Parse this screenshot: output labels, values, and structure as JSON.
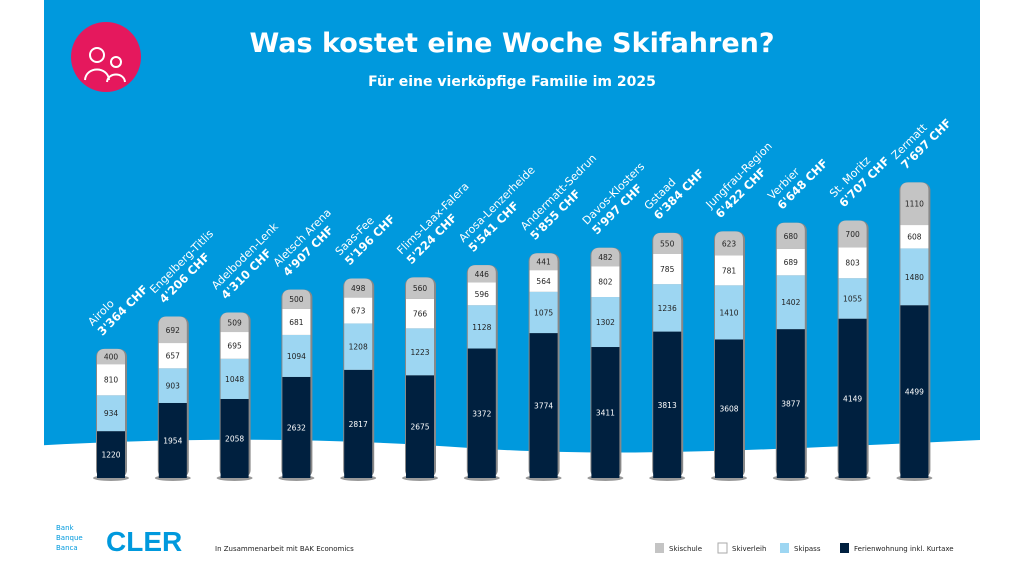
{
  "header": {
    "title": "Was kostet eine Woche Skifahren?",
    "subtitle": "Für eine vierköpfige Familie im 2025",
    "icon": "family-icon"
  },
  "footer": {
    "bank_lines": [
      "Bank",
      "Banque",
      "Banca"
    ],
    "brand": "CLER",
    "partner": "In Zusammenarbeit mit BAK Economics"
  },
  "colors": {
    "background": "#0099DD",
    "accent": "#E5185D",
    "Skischule": "#C4C4C4",
    "Skiverleih": "#FFFFFF",
    "Skipass": "#9DD6F2",
    "Ferienwohnung inkl. Kurtaxe": "#00203F"
  },
  "chart_data": {
    "type": "bar",
    "stacked": true,
    "title": "Was kostet eine Woche Skifahren?",
    "subtitle": "Für eine vierköpfige Familie im 2025",
    "unit": "CHF",
    "legend_position": "bottom-right",
    "categories": [
      "Airolo",
      "Engelberg-Titlis",
      "Adelboden-Lenk",
      "Aletsch Arena",
      "Saas-Fee",
      "Flims-Laax-Falera",
      "Arosa-Lenzerheide",
      "Andermatt-Sedrun",
      "Davos-Klosters",
      "Gstaad",
      "Jungfrau-Region",
      "Verbier",
      "St. Moritz",
      "Zermatt"
    ],
    "totals": [
      "3'364 CHF",
      "4'206 CHF",
      "4'310 CHF",
      "4'907 CHF",
      "5'196 CHF",
      "5'224 CHF",
      "5'541 CHF",
      "5'855 CHF",
      "5'997 CHF",
      "6'384 CHF",
      "6'422 CHF",
      "6'648 CHF",
      "6'707 CHF",
      "7'697 CHF"
    ],
    "series": [
      {
        "name": "Ferienwohnung inkl. Kurtaxe",
        "values": [
          1220,
          1954,
          2058,
          2632,
          2817,
          2675,
          3372,
          3774,
          3411,
          3813,
          3608,
          3877,
          4149,
          4499
        ]
      },
      {
        "name": "Skipass",
        "values": [
          934,
          903,
          1048,
          1094,
          1208,
          1223,
          1128,
          1075,
          1302,
          1236,
          1410,
          1402,
          1055,
          1480
        ]
      },
      {
        "name": "Skiverleih",
        "values": [
          810,
          657,
          695,
          681,
          673,
          766,
          596,
          564,
          802,
          785,
          781,
          689,
          803,
          608
        ]
      },
      {
        "name": "Skischule",
        "values": [
          400,
          692,
          509,
          500,
          498,
          560,
          446,
          441,
          482,
          550,
          623,
          680,
          700,
          1110
        ]
      }
    ],
    "legend": [
      "Skischule",
      "Skiverleih",
      "Skipass",
      "Ferienwohnung inkl. Kurtaxe"
    ]
  }
}
